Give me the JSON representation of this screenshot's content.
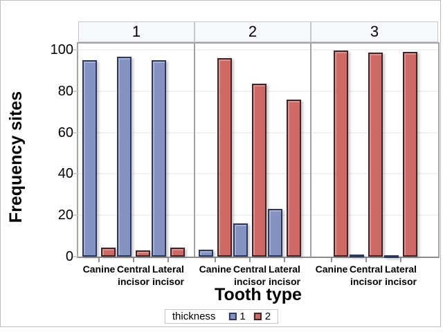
{
  "chart_data": {
    "type": "bar",
    "title": "",
    "ylabel": "Frequency sites",
    "xlabel": "Tooth type",
    "ylim": [
      0,
      100
    ],
    "yticks": [
      0,
      20,
      40,
      60,
      80,
      100
    ],
    "grid": "horizontal",
    "legend_position": "bottom",
    "categories": [
      "Canine",
      "Central incisor",
      "Lateral incisor"
    ],
    "panels": [
      {
        "label": "1",
        "series": [
          {
            "name": "1",
            "values": [
              95,
              96.5,
              95
            ]
          },
          {
            "name": "2",
            "values": [
              4.5,
              3,
              4.5
            ]
          }
        ]
      },
      {
        "label": "2",
        "series": [
          {
            "name": "1",
            "values": [
              3.5,
              16,
              23
            ]
          },
          {
            "name": "2",
            "values": [
              96,
              83.5,
              76
            ]
          }
        ]
      },
      {
        "label": "3",
        "series": [
          {
            "name": "1",
            "values": [
              0,
              1,
              0.5
            ]
          },
          {
            "name": "2",
            "values": [
              99.5,
              98.5,
              99
            ]
          }
        ]
      }
    ],
    "legend": {
      "title": "thickness",
      "entries": [
        {
          "label": "1",
          "color": "#8493c4",
          "border": "#2e3858"
        },
        {
          "label": "2",
          "color": "#ce6a66",
          "border": "#3f2326"
        }
      ]
    },
    "colors": {
      "panel_header_bg": "#f7f8fb",
      "axis_line": "#8a8a8a",
      "gridline": "#f1f1f2"
    }
  }
}
